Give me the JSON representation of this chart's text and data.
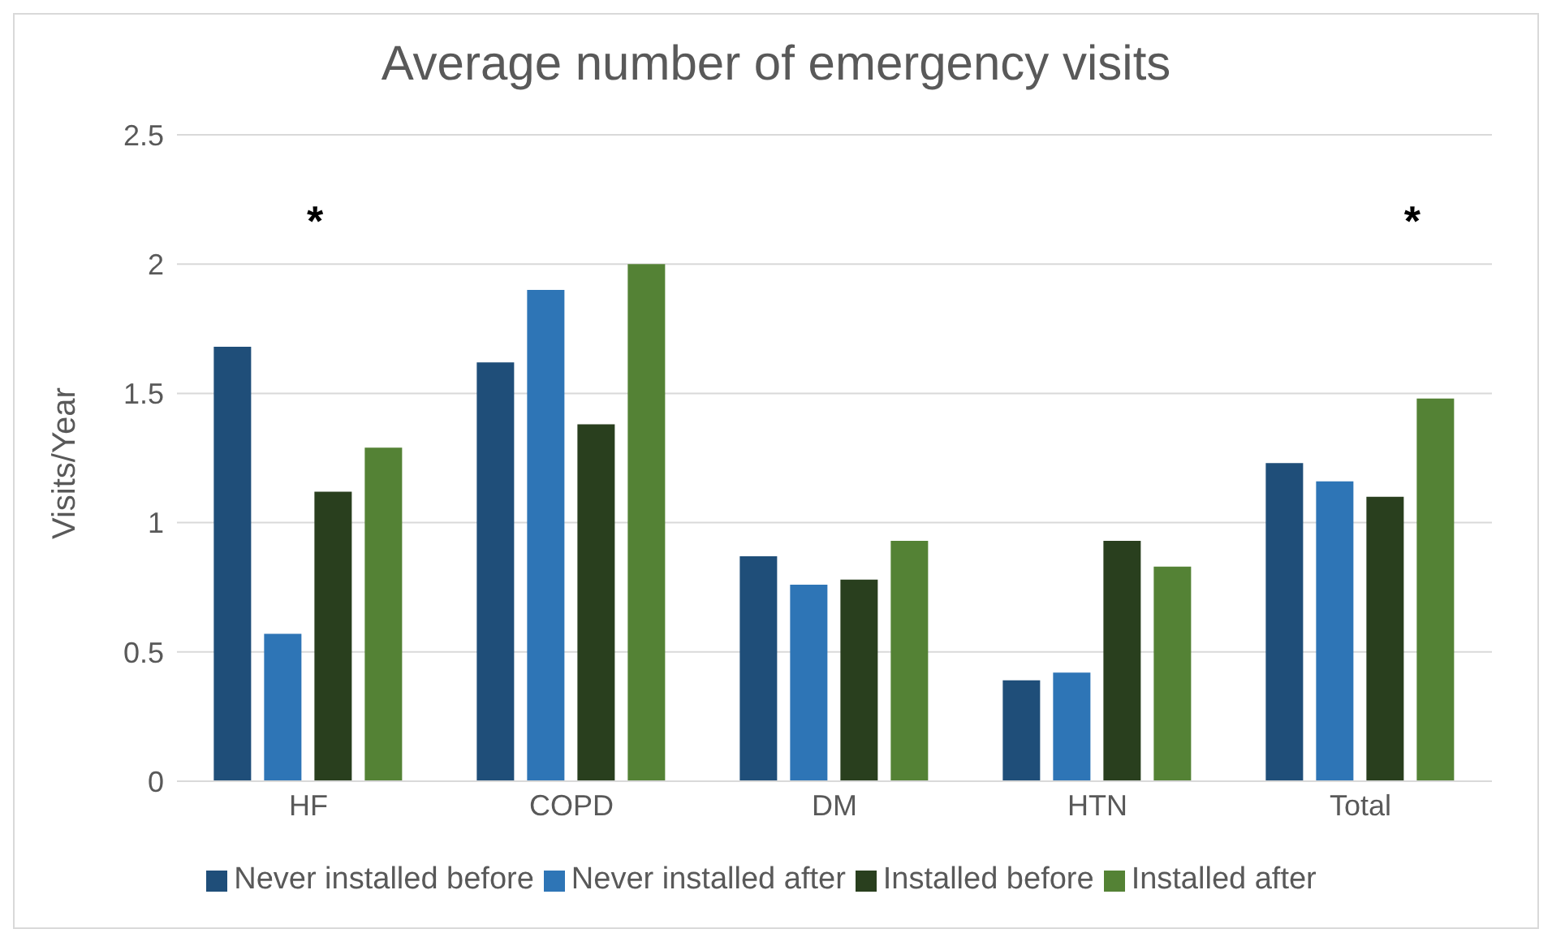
{
  "chart_data": {
    "type": "bar",
    "title": "Average number of emergency visits",
    "ylabel": "Visits/Year",
    "categories": [
      "HF",
      "COPD",
      "DM",
      "HTN",
      "Total"
    ],
    "series": [
      {
        "name": "Never installed before",
        "color": "#1f4e79",
        "values": [
          1.68,
          1.62,
          0.87,
          0.39,
          1.23
        ]
      },
      {
        "name": "Never installed after",
        "color": "#2e75b6",
        "values": [
          0.57,
          1.9,
          0.76,
          0.42,
          1.16
        ]
      },
      {
        "name": "Installed before",
        "color": "#293f1e",
        "values": [
          1.12,
          1.38,
          0.78,
          0.93,
          1.1
        ]
      },
      {
        "name": "Installed after",
        "color": "#548235",
        "values": [
          1.29,
          2.0,
          0.93,
          0.83,
          1.48
        ]
      }
    ],
    "ylim": [
      0,
      2.5
    ],
    "yticks": [
      0,
      0.5,
      1,
      1.5,
      2,
      2.5
    ],
    "grid": "y",
    "legend": "bottom",
    "annotations": [
      "*",
      "*"
    ]
  }
}
